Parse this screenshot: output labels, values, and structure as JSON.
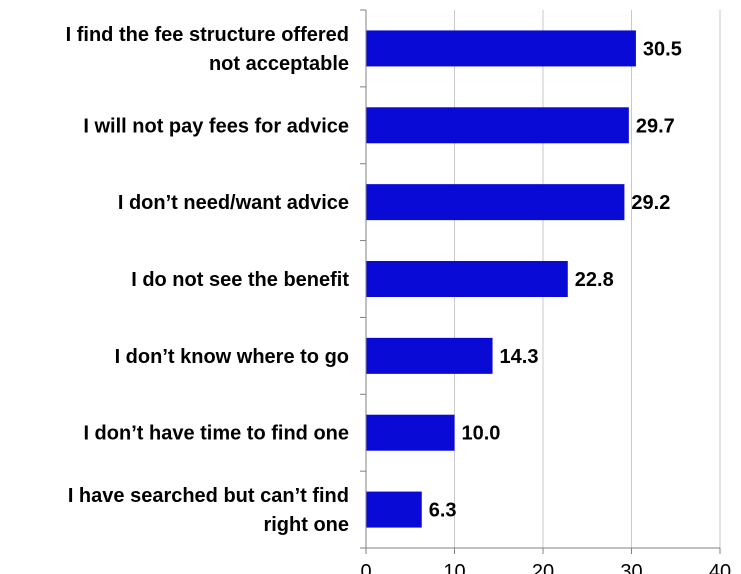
{
  "chart_data": {
    "type": "bar",
    "orientation": "horizontal",
    "categories": [
      [
        "I find the fee structure offered",
        "not acceptable"
      ],
      [
        "I will not pay fees for advice"
      ],
      [
        "I don’t need/want advice"
      ],
      [
        "I do not see the benefit"
      ],
      [
        "I don’t know where to go"
      ],
      [
        "I don’t have time to find one"
      ],
      [
        "I have searched but can’t find",
        "right one"
      ]
    ],
    "values": [
      30.5,
      29.7,
      29.2,
      22.8,
      14.3,
      10.0,
      6.3
    ],
    "value_labels": [
      "30.5",
      "29.7",
      "29.2",
      "22.8",
      "14.3",
      "10.0",
      "6.3"
    ],
    "xlim": [
      0,
      40
    ],
    "xticks": [
      0,
      10,
      20,
      30,
      40
    ],
    "xtick_labels": [
      "0",
      "10",
      "20",
      "30",
      "40"
    ],
    "grid": "vertical",
    "legend": "none",
    "colors": {
      "bar": "#0a0ad6",
      "grid": "#c8c8c8",
      "axis": "#808080",
      "text": "#000000"
    }
  }
}
